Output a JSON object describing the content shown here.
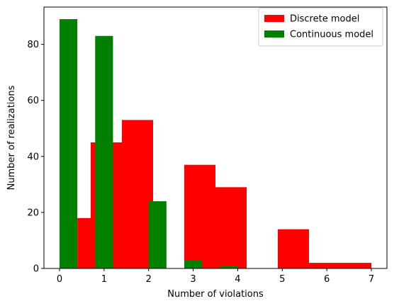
{
  "chart_data": {
    "type": "bar",
    "xlabel": "Number of violations",
    "ylabel": "Number of realizations",
    "xlim": [
      -0.35,
      7.35
    ],
    "ylim": [
      0,
      93.3
    ],
    "xticks": [
      "0",
      "1",
      "2",
      "3",
      "4",
      "5",
      "6",
      "7"
    ],
    "yticks": [
      "0",
      "20",
      "40",
      "60",
      "80"
    ],
    "legend_position": "top-right",
    "grid": false,
    "series": [
      {
        "name": "Discrete model",
        "color": "#ff0000",
        "bins": [
          {
            "x0": 0.0,
            "x1": 0.7,
            "value": 0
          },
          {
            "x0": 0.7,
            "x1": 1.4,
            "value": 45
          },
          {
            "x0": 1.4,
            "x1": 2.1,
            "value": 53
          },
          {
            "x0": 2.1,
            "x1": 2.8,
            "value": 0
          },
          {
            "x0": 2.8,
            "x1": 3.5,
            "value": 37
          },
          {
            "x0": 3.5,
            "x1": 4.2,
            "value": 29
          },
          {
            "x0": 4.2,
            "x1": 4.9,
            "value": 0
          },
          {
            "x0": 4.9,
            "x1": 5.6,
            "value": 14
          },
          {
            "x0": 5.6,
            "x1": 6.3,
            "value": 2
          },
          {
            "x0": 6.3,
            "x1": 7.0,
            "value": 2
          }
        ]
      },
      {
        "name": "Continuous model",
        "color": "#008000",
        "bins": [
          {
            "x0": 0.0,
            "x1": 0.4,
            "value": 89
          },
          {
            "x0": 0.4,
            "x1": 0.8,
            "value": 0
          },
          {
            "x0": 0.8,
            "x1": 1.2,
            "value": 83
          },
          {
            "x0": 1.2,
            "x1": 1.6,
            "value": 0
          },
          {
            "x0": 1.6,
            "x1": 2.0,
            "value": 0
          },
          {
            "x0": 2.0,
            "x1": 2.4,
            "value": 24
          },
          {
            "x0": 2.4,
            "x1": 2.8,
            "value": 0
          },
          {
            "x0": 2.8,
            "x1": 3.2,
            "value": 3
          },
          {
            "x0": 3.2,
            "x1": 3.6,
            "value": 0
          },
          {
            "x0": 3.6,
            "x1": 4.0,
            "value": 1
          }
        ]
      },
      {
        "name": "",
        "color": "#ff0000",
        "bins": [
          {
            "x0": 0.4,
            "x1": 0.7,
            "value": 18
          }
        ]
      }
    ]
  }
}
